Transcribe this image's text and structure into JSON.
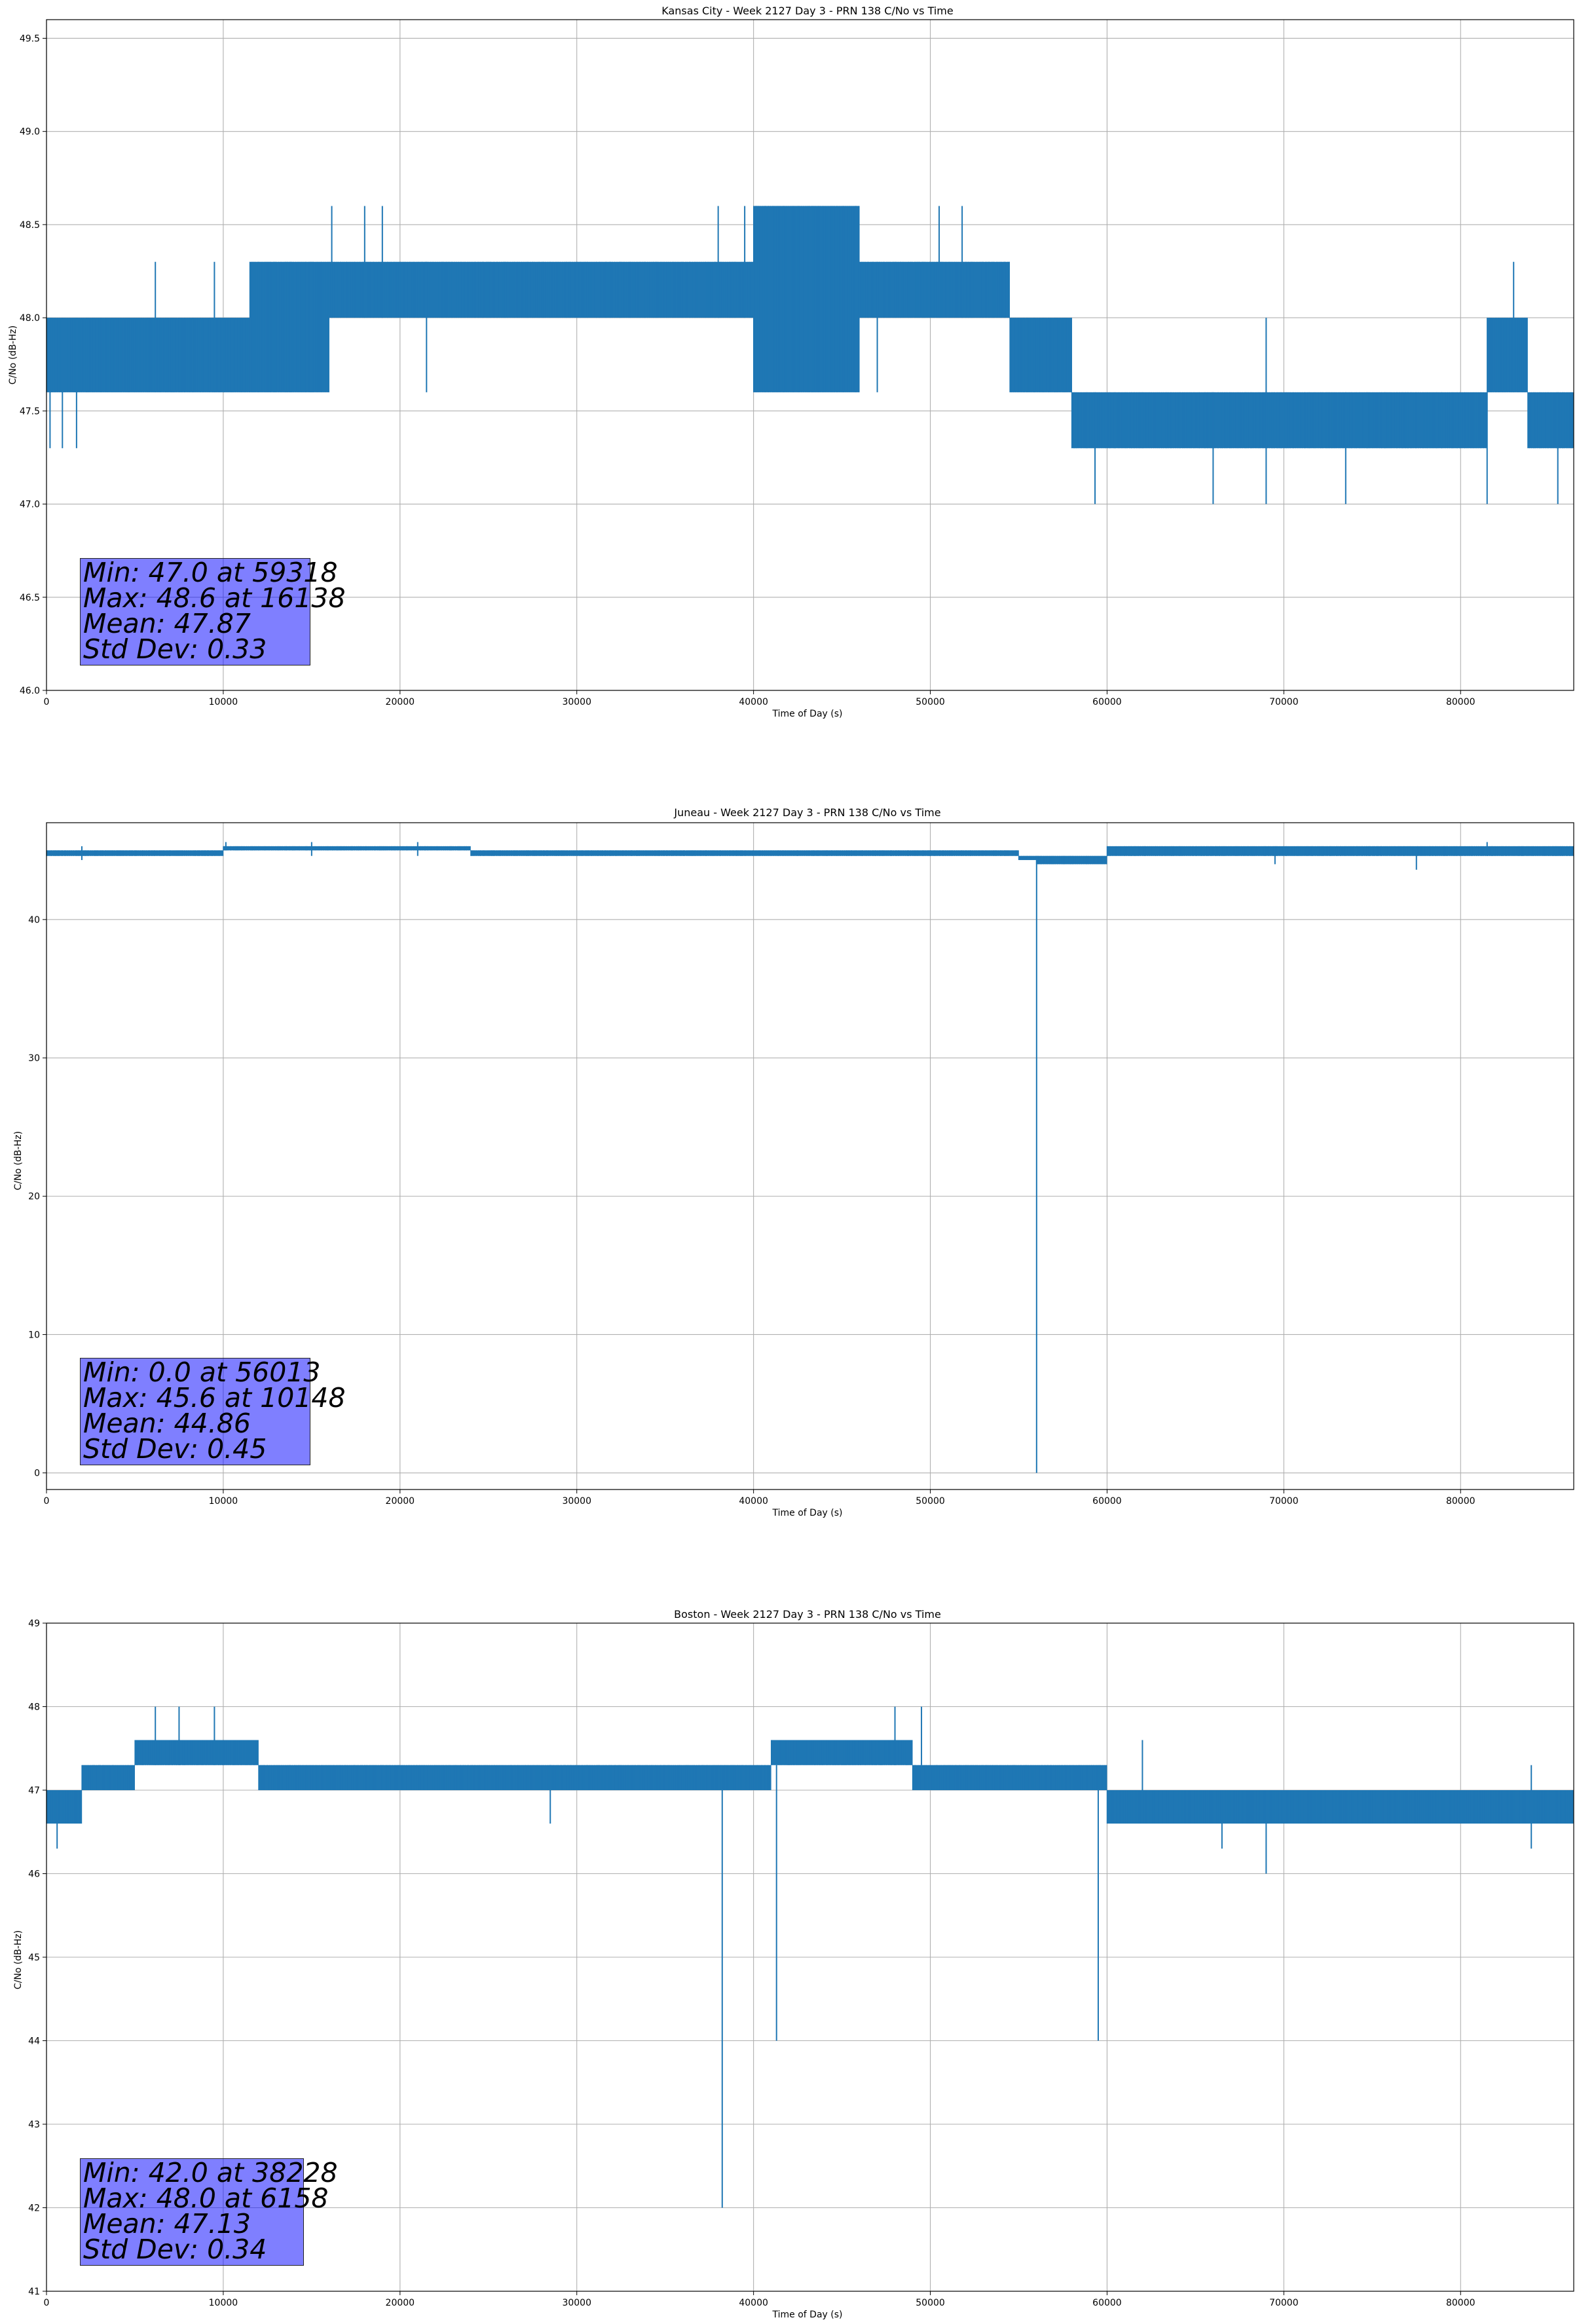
{
  "chart_data": [
    {
      "type": "line",
      "title": "Kansas City - Week 2127 Day 3 - PRN 138 C/No vs Time",
      "xlabel": "Time of Day (s)",
      "ylabel": "C/No (dB-Hz)",
      "xlim": [
        0,
        86400
      ],
      "ylim": [
        46.0,
        49.6
      ],
      "xticks": [
        0,
        10000,
        20000,
        30000,
        40000,
        50000,
        60000,
        70000,
        80000
      ],
      "yticks": [
        46.0,
        46.5,
        47.0,
        47.5,
        48.0,
        48.5,
        49.0,
        49.5
      ],
      "ytick_decimals": 1,
      "grid": true,
      "line_color": "#1f77b4",
      "series": [
        {
          "segments": [
            {
              "x": [
                0,
                11500
              ],
              "low": 47.6,
              "high": 48.0
            },
            {
              "x": [
                11500,
                16000
              ],
              "low": 47.6,
              "high": 48.3
            },
            {
              "x": [
                16000,
                40000
              ],
              "low": 48.0,
              "high": 48.3
            },
            {
              "x": [
                40000,
                46000
              ],
              "low": 47.6,
              "high": 48.6
            },
            {
              "x": [
                46000,
                54500
              ],
              "low": 48.0,
              "high": 48.3
            },
            {
              "x": [
                54500,
                58000
              ],
              "low": 47.6,
              "high": 48.0
            },
            {
              "x": [
                58000,
                81500
              ],
              "low": 47.3,
              "high": 47.6
            },
            {
              "x": [
                81500,
                83800
              ],
              "low": 47.6,
              "high": 48.0
            },
            {
              "x": [
                83800,
                86400
              ],
              "low": 47.3,
              "high": 47.6
            }
          ],
          "spikes": [
            {
              "x": 200,
              "low": 47.3,
              "high": 48.0
            },
            {
              "x": 900,
              "low": 47.3,
              "high": 48.0
            },
            {
              "x": 1700,
              "low": 47.3,
              "high": 48.0
            },
            {
              "x": 6158,
              "low": 47.6,
              "high": 48.3
            },
            {
              "x": 9500,
              "low": 47.6,
              "high": 48.3
            },
            {
              "x": 16138,
              "low": 48.0,
              "high": 48.6
            },
            {
              "x": 18000,
              "low": 48.0,
              "high": 48.6
            },
            {
              "x": 19000,
              "low": 48.0,
              "high": 48.6
            },
            {
              "x": 21500,
              "low": 47.6,
              "high": 48.3
            },
            {
              "x": 38000,
              "low": 48.0,
              "high": 48.6
            },
            {
              "x": 39500,
              "low": 48.0,
              "high": 48.6
            },
            {
              "x": 47000,
              "low": 47.6,
              "high": 48.3
            },
            {
              "x": 50500,
              "low": 48.0,
              "high": 48.6
            },
            {
              "x": 51800,
              "low": 48.0,
              "high": 48.6
            },
            {
              "x": 59318,
              "low": 47.0,
              "high": 47.6
            },
            {
              "x": 66000,
              "low": 47.0,
              "high": 47.6
            },
            {
              "x": 69000,
              "low": 47.0,
              "high": 48.0
            },
            {
              "x": 73500,
              "low": 47.0,
              "high": 47.6
            },
            {
              "x": 81500,
              "low": 47.0,
              "high": 47.6
            },
            {
              "x": 83000,
              "low": 47.6,
              "high": 48.3
            },
            {
              "x": 85500,
              "low": 47.0,
              "high": 47.6
            }
          ]
        }
      ],
      "stats": {
        "min": "Min: 47.0 at 59318",
        "max": "Max: 48.6 at 16138",
        "mean": "Mean: 47.87",
        "std": "Std Dev: 0.33"
      }
    },
    {
      "type": "line",
      "title": "Juneau - Week 2127 Day 3 - PRN 138 C/No vs Time",
      "xlabel": "Time of Day (s)",
      "ylabel": "C/No (dB-Hz)",
      "xlim": [
        0,
        86400
      ],
      "ylim": [
        -1.2,
        47.0
      ],
      "xticks": [
        0,
        10000,
        20000,
        30000,
        40000,
        50000,
        60000,
        70000,
        80000
      ],
      "yticks": [
        0,
        10,
        20,
        30,
        40
      ],
      "ytick_decimals": 0,
      "grid": true,
      "line_color": "#1f77b4",
      "series": [
        {
          "segments": [
            {
              "x": [
                0,
                10000
              ],
              "low": 44.6,
              "high": 45.0
            },
            {
              "x": [
                10000,
                24000
              ],
              "low": 45.0,
              "high": 45.3
            },
            {
              "x": [
                24000,
                55000
              ],
              "low": 44.6,
              "high": 45.0
            },
            {
              "x": [
                55000,
                56000
              ],
              "low": 44.3,
              "high": 44.6
            },
            {
              "x": [
                56000,
                60000
              ],
              "low": 44.0,
              "high": 44.6
            },
            {
              "x": [
                60000,
                86400
              ],
              "low": 44.6,
              "high": 45.3
            }
          ],
          "spikes": [
            {
              "x": 2000,
              "low": 44.3,
              "high": 45.3
            },
            {
              "x": 10148,
              "low": 45.0,
              "high": 45.6
            },
            {
              "x": 15000,
              "low": 44.6,
              "high": 45.6
            },
            {
              "x": 21000,
              "low": 44.6,
              "high": 45.6
            },
            {
              "x": 56013,
              "low": 0.0,
              "high": 44.3
            },
            {
              "x": 69500,
              "low": 44.0,
              "high": 45.3
            },
            {
              "x": 77500,
              "low": 43.6,
              "high": 45.0
            },
            {
              "x": 81500,
              "low": 44.6,
              "high": 45.6
            }
          ]
        }
      ],
      "stats": {
        "min": "Min: 0.0 at 56013",
        "max": "Max: 45.6 at 10148",
        "mean": "Mean: 44.86",
        "std": "Std Dev: 0.45"
      }
    },
    {
      "type": "line",
      "title": "Boston - Week 2127 Day 3 - PRN 138 C/No vs Time",
      "xlabel": "Time of Day (s)",
      "ylabel": "C/No (dB-Hz)",
      "xlim": [
        0,
        86400
      ],
      "ylim": [
        41,
        49
      ],
      "xticks": [
        0,
        10000,
        20000,
        30000,
        40000,
        50000,
        60000,
        70000,
        80000
      ],
      "yticks": [
        41,
        42,
        43,
        44,
        45,
        46,
        47,
        48,
        49
      ],
      "ytick_decimals": 0,
      "grid": true,
      "line_color": "#1f77b4",
      "series": [
        {
          "segments": [
            {
              "x": [
                0,
                2000
              ],
              "low": 46.6,
              "high": 47.0
            },
            {
              "x": [
                2000,
                5000
              ],
              "low": 47.0,
              "high": 47.3
            },
            {
              "x": [
                5000,
                12000
              ],
              "low": 47.3,
              "high": 47.6
            },
            {
              "x": [
                12000,
                41000
              ],
              "low": 47.0,
              "high": 47.3
            },
            {
              "x": [
                41000,
                49000
              ],
              "low": 47.3,
              "high": 47.6
            },
            {
              "x": [
                49000,
                60000
              ],
              "low": 47.0,
              "high": 47.3
            },
            {
              "x": [
                60000,
                86400
              ],
              "low": 46.6,
              "high": 47.0
            }
          ],
          "spikes": [
            {
              "x": 600,
              "low": 46.3,
              "high": 47.0
            },
            {
              "x": 6158,
              "low": 47.3,
              "high": 48.0
            },
            {
              "x": 7500,
              "low": 47.3,
              "high": 48.0
            },
            {
              "x": 9500,
              "low": 47.3,
              "high": 48.0
            },
            {
              "x": 28500,
              "low": 46.6,
              "high": 47.3
            },
            {
              "x": 38228,
              "low": 42.0,
              "high": 47.0
            },
            {
              "x": 41300,
              "low": 44.0,
              "high": 47.3
            },
            {
              "x": 48000,
              "low": 47.3,
              "high": 48.0
            },
            {
              "x": 49500,
              "low": 47.3,
              "high": 48.0
            },
            {
              "x": 59500,
              "low": 44.0,
              "high": 47.0
            },
            {
              "x": 62000,
              "low": 46.6,
              "high": 47.6
            },
            {
              "x": 66500,
              "low": 46.3,
              "high": 47.0
            },
            {
              "x": 69000,
              "low": 46.0,
              "high": 47.0
            },
            {
              "x": 84000,
              "low": 46.3,
              "high": 47.3
            }
          ]
        }
      ],
      "stats": {
        "min": "Min: 42.0 at 38228",
        "max": "Max: 48.0 at 6158",
        "mean": "Mean: 47.13",
        "std": "Std Dev: 0.34"
      }
    }
  ]
}
